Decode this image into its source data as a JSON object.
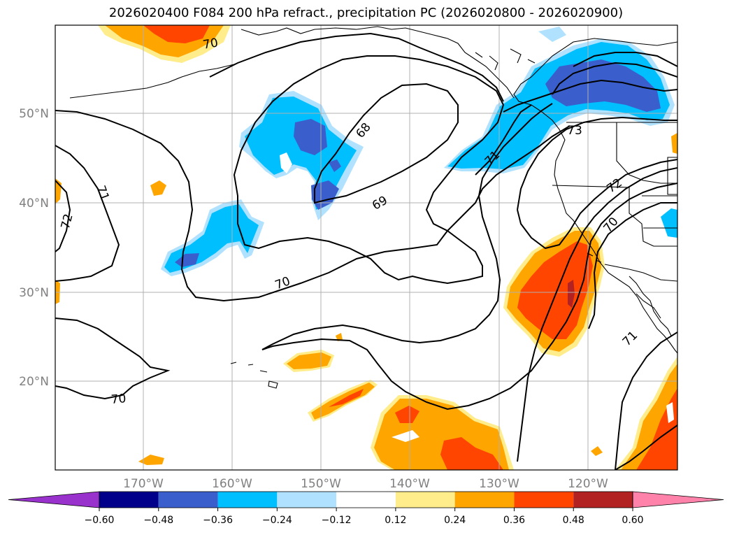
{
  "title": "2026020400 F084 200 hPa refract., precipitation PC (2026020800 - 2026020900)",
  "lat_labels": [
    "50°N",
    "40°N",
    "30°N",
    "20°N"
  ],
  "lon_labels": [
    "170°W",
    "160°W",
    "150°W",
    "140°W",
    "130°W",
    "120°W"
  ],
  "contour_labels": [
    "70",
    "71",
    "72",
    "68",
    "69",
    "70",
    "71",
    "73",
    "72",
    "70",
    "71",
    "70"
  ],
  "colorbar": {
    "ticks": [
      "−0.60",
      "−0.48",
      "−0.36",
      "−0.24",
      "−0.12",
      "0.12",
      "0.24",
      "0.36",
      "0.48",
      "0.60"
    ],
    "colors": [
      "#9932cc",
      "#00008b",
      "#3a5fcd",
      "#00bfff",
      "#b0e2ff",
      "#ffffff",
      "#ffec8b",
      "#ffa500",
      "#ff4500",
      "#b22222",
      "#ff82ab"
    ]
  }
}
